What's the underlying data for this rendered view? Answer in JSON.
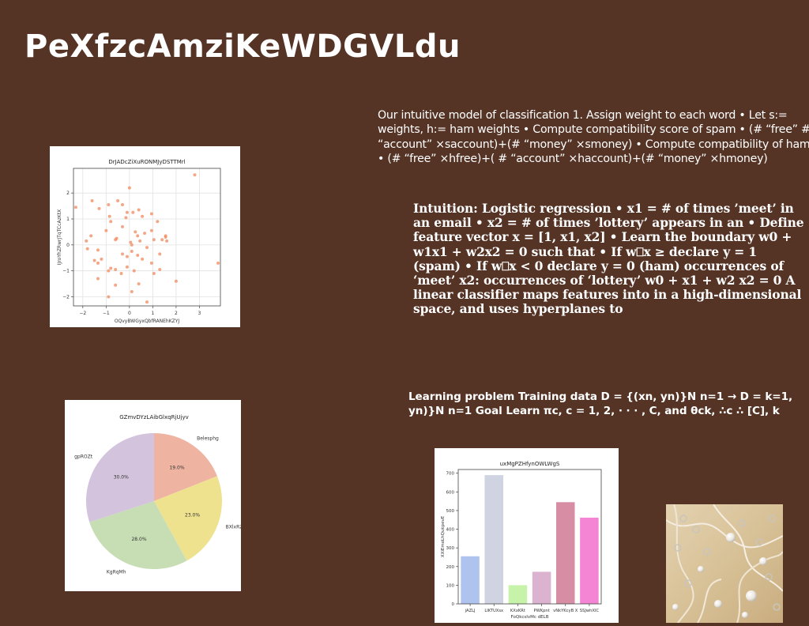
{
  "title": "PeXfzcAmziKeWDGVLdu",
  "paragraphs": {
    "p1": "Our intuitive model of classification 1. Assign weight to each word • Let s:= weights, h:= ham weights • Compute compatibility score of spam • (# “free” # “account” ×saccount)+(# “money” ×smoney) • Compute compatibility of ham • (# “free” ×hfree)+( # “account” ×haccount)+(# “money” ×hmoney)",
    "p2": "Intuition: Logistic regression • x1 = # of times ’meet’ in an email • x2 = # of times ’lottery’ appears in an • Define feature vector x = [1, x1, x2] • Learn the boundary w0 + w1x1 + w2x2 = 0 such that • If w⎕x ≥ declare y = 1 (spam) • If w⎕x < 0 declare y = 0 (ham) occurrences of ‘meet’ x2: occurrences of ‘lottery’ w0 + x1 + w2 x2 = 0 A linear classifier maps features into in a high-dimensional space, and uses hyperplanes to",
    "p3": "Learning problem Training data D = {(xn, yn)}N n=1 → D = k=1, yn)}N n=1 Goal Learn πc, c = 1, 2, · · · , C, and θck, ∴c ∴ [C], k"
  },
  "chart_data": [
    {
      "type": "scatter",
      "title": "DrJADcZiXuRONMJyDSTTMrl",
      "xlabel": "OQvyBWGyxQbfRANEhKZYJ",
      "ylabel": "IJroYhZRwrJTqTCcAzKtX",
      "xlim": [
        -2.4,
        3.9
      ],
      "ylim": [
        -2.35,
        2.95
      ],
      "xticks": [
        -2,
        -1,
        0,
        1,
        2,
        3
      ],
      "yticks": [
        -2,
        -1,
        0,
        1,
        2
      ],
      "grid": true,
      "color": "#f08a5d",
      "points": [
        [
          2.8,
          2.7
        ],
        [
          3.8,
          -0.7
        ],
        [
          -2.3,
          1.45
        ],
        [
          -1.6,
          1.7
        ],
        [
          -1.3,
          1.4
        ],
        [
          -0.9,
          1.55
        ],
        [
          -0.85,
          1.1
        ],
        [
          -0.5,
          1.7
        ],
        [
          -0.3,
          1.55
        ],
        [
          -0.1,
          1.25
        ],
        [
          0.15,
          1.25
        ],
        [
          0.0,
          2.2
        ],
        [
          0.4,
          1.35
        ],
        [
          0.55,
          1.1
        ],
        [
          0.95,
          1.2
        ],
        [
          -1.85,
          0.15
        ],
        [
          -1.65,
          0.35
        ],
        [
          -1.8,
          -0.15
        ],
        [
          -1.35,
          -0.2
        ],
        [
          -1.0,
          0.55
        ],
        [
          -0.8,
          0.9
        ],
        [
          -0.55,
          0.25
        ],
        [
          -0.6,
          0.2
        ],
        [
          -0.3,
          0.7
        ],
        [
          -0.15,
          1.05
        ],
        [
          0.05,
          0.1
        ],
        [
          0.1,
          0.0
        ],
        [
          0.25,
          0.5
        ],
        [
          0.35,
          0.35
        ],
        [
          0.45,
          0.15
        ],
        [
          0.65,
          0.45
        ],
        [
          0.75,
          -0.1
        ],
        [
          0.95,
          0.55
        ],
        [
          1.05,
          0.2
        ],
        [
          1.2,
          0.9
        ],
        [
          1.4,
          0.2
        ],
        [
          1.55,
          0.3
        ],
        [
          1.55,
          0.35
        ],
        [
          1.6,
          0.15
        ],
        [
          -1.5,
          -0.6
        ],
        [
          -1.35,
          -0.7
        ],
        [
          -1.2,
          -0.55
        ],
        [
          -0.8,
          -0.9
        ],
        [
          -0.6,
          -0.95
        ],
        [
          -0.3,
          -0.35
        ],
        [
          -0.1,
          -0.45
        ],
        [
          0.1,
          -0.25
        ],
        [
          0.35,
          -0.4
        ],
        [
          0.55,
          -0.55
        ],
        [
          0.95,
          -0.7
        ],
        [
          1.05,
          -1.1
        ],
        [
          1.3,
          -0.35
        ],
        [
          -1.35,
          -1.3
        ],
        [
          -0.9,
          -1.0
        ],
        [
          -0.6,
          -1.55
        ],
        [
          -0.35,
          -1.1
        ],
        [
          -0.1,
          -0.85
        ],
        [
          0.2,
          -1.0
        ],
        [
          0.4,
          -1.5
        ],
        [
          0.1,
          -1.8
        ],
        [
          -0.9,
          -2.0
        ],
        [
          0.75,
          -2.2
        ],
        [
          2.0,
          -1.4
        ],
        [
          1.3,
          -0.95
        ]
      ]
    },
    {
      "type": "pie",
      "title": "GZmvDYzLAibGlxqRjUjyv",
      "labels": [
        "Belesphg",
        "BXlxRZFi",
        "KgRqMh",
        "gpROZt"
      ],
      "values": [
        19.0,
        23.0,
        28.0,
        30.0
      ],
      "pct_labels": [
        "19.0%",
        "23.0%",
        "28.0%",
        "30.0%"
      ],
      "colors": [
        "#efb4a1",
        "#efe28f",
        "#c7deb5",
        "#d3c3dc"
      ]
    },
    {
      "type": "bar",
      "title": "uxMgPZHfynOWLWgS",
      "xlabel": "FoQkcsIvMc dELB",
      "ylabel": "XXiEmoLhQukpevE",
      "categories": [
        "jAZLJ",
        "LIKTUXsx",
        "KXxKRt",
        "PWKpnt",
        "vNkYKcyB X",
        "SSJwhXIC"
      ],
      "values": [
        255,
        690,
        100,
        172,
        545,
        462
      ],
      "ylim": [
        0,
        720
      ],
      "yticks": [
        0,
        100,
        200,
        300,
        400,
        500,
        600,
        700
      ],
      "colors": [
        "#aec3ee",
        "#cfd3e2",
        "#c7f2a9",
        "#dcb2d1",
        "#d78da3",
        "#f385d4"
      ]
    }
  ],
  "image": {
    "name": "jewelry-photo",
    "colors": [
      "#d4c09a",
      "#e8d6b8",
      "#b8a27e"
    ]
  }
}
